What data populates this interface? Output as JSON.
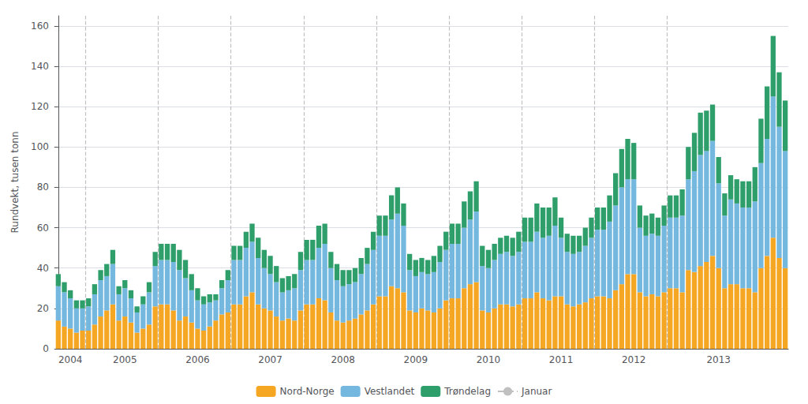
{
  "chart_data": {
    "type": "bar",
    "stacked": true,
    "ylabel": "Rundvekt, tusen tonn",
    "ylim": [
      0,
      165
    ],
    "yticks": [
      0,
      20,
      40,
      60,
      80,
      100,
      120,
      140,
      160
    ],
    "grid": true,
    "legend": "bottom",
    "categories": [
      null,
      null,
      "2004",
      null,
      null,
      null,
      null,
      null,
      null,
      null,
      null,
      "2005",
      null,
      null,
      null,
      null,
      null,
      null,
      null,
      null,
      null,
      null,
      null,
      "2006",
      null,
      null,
      null,
      null,
      null,
      null,
      null,
      null,
      null,
      null,
      null,
      "2007",
      null,
      null,
      null,
      null,
      null,
      null,
      null,
      null,
      null,
      null,
      null,
      "2008",
      null,
      null,
      null,
      null,
      null,
      null,
      null,
      null,
      null,
      null,
      null,
      "2009",
      null,
      null,
      null,
      null,
      null,
      null,
      null,
      null,
      null,
      null,
      null,
      "2010",
      null,
      null,
      null,
      null,
      null,
      null,
      null,
      null,
      null,
      null,
      null,
      "2011",
      null,
      null,
      null,
      null,
      null,
      null,
      null,
      null,
      null,
      null,
      null,
      "2012",
      null,
      null,
      null,
      null,
      null,
      null,
      null,
      null,
      null,
      null,
      null,
      null,
      null,
      "2013",
      null,
      null,
      null,
      null,
      null,
      null,
      null,
      null,
      null,
      null,
      null
    ],
    "series": [
      {
        "name": "Nord-Norge",
        "color": "#F5A623",
        "values": [
          14,
          11,
          10,
          8,
          9,
          9,
          12,
          16,
          19,
          22,
          14,
          16,
          13,
          8,
          10,
          12,
          21,
          22,
          22,
          19,
          14,
          16,
          13,
          10,
          9,
          11,
          14,
          17,
          18,
          22,
          22,
          26,
          28,
          22,
          20,
          19,
          16,
          14,
          15,
          14,
          19,
          22,
          22,
          25,
          24,
          18,
          14,
          13,
          14,
          15,
          17,
          19,
          22,
          26,
          26,
          31,
          30,
          28,
          19,
          18,
          20,
          19,
          18,
          20,
          24,
          25,
          25,
          30,
          32,
          33,
          19,
          18,
          20,
          22,
          22,
          21,
          22,
          25,
          25,
          28,
          25,
          24,
          26,
          26,
          22,
          21,
          22,
          23,
          25,
          26,
          26,
          25,
          29,
          32,
          37,
          37,
          28,
          26,
          27,
          26,
          28,
          30,
          30,
          28,
          39,
          38,
          41,
          43,
          46,
          40,
          30,
          32,
          32,
          30,
          30,
          28,
          40,
          46,
          55,
          45,
          40
        ]
      },
      {
        "name": "Vestlandet",
        "color": "#74B8E0",
        "values": [
          17,
          17,
          15,
          12,
          11,
          12,
          15,
          18,
          17,
          20,
          13,
          14,
          12,
          10,
          12,
          16,
          20,
          22,
          22,
          24,
          25,
          19,
          16,
          14,
          13,
          12,
          10,
          13,
          16,
          22,
          22,
          24,
          25,
          23,
          20,
          18,
          17,
          14,
          14,
          16,
          20,
          22,
          22,
          25,
          28,
          22,
          20,
          18,
          18,
          18,
          20,
          23,
          27,
          30,
          30,
          33,
          37,
          33,
          20,
          18,
          18,
          18,
          20,
          23,
          25,
          27,
          27,
          30,
          32,
          35,
          22,
          22,
          24,
          25,
          26,
          25,
          26,
          28,
          28,
          30,
          30,
          32,
          35,
          29,
          26,
          26,
          26,
          28,
          30,
          33,
          33,
          38,
          42,
          48,
          47,
          47,
          32,
          30,
          30,
          30,
          33,
          35,
          35,
          38,
          45,
          50,
          55,
          55,
          57,
          42,
          36,
          42,
          40,
          40,
          40,
          45,
          52,
          58,
          70,
          65,
          58
        ]
      },
      {
        "name": "Trøndelag",
        "color": "#2E9E6B",
        "values": [
          6,
          5,
          4,
          4,
          4,
          4,
          5,
          5,
          6,
          7,
          4,
          4,
          4,
          3,
          4,
          5,
          7,
          8,
          8,
          9,
          10,
          9,
          8,
          6,
          4,
          4,
          3,
          4,
          5,
          7,
          7,
          8,
          9,
          10,
          9,
          9,
          8,
          7,
          7,
          7,
          9,
          10,
          10,
          11,
          10,
          8,
          8,
          8,
          7,
          7,
          8,
          8,
          9,
          10,
          10,
          12,
          13,
          11,
          8,
          8,
          7,
          7,
          8,
          8,
          9,
          10,
          10,
          13,
          14,
          15,
          10,
          9,
          8,
          8,
          8,
          9,
          10,
          12,
          12,
          14,
          15,
          14,
          14,
          10,
          9,
          9,
          8,
          9,
          10,
          11,
          11,
          13,
          16,
          19,
          20,
          18,
          11,
          10,
          10,
          9,
          10,
          11,
          11,
          13,
          16,
          19,
          21,
          20,
          18,
          13,
          11,
          12,
          12,
          13,
          13,
          17,
          22,
          26,
          30,
          27,
          25
        ]
      },
      {
        "name": "Januar",
        "type": "vline",
        "color": "#C0C0C0",
        "line_style": "dashed",
        "positions": [
          5,
          17,
          29,
          41,
          53,
          65,
          77,
          89,
          101
        ]
      }
    ]
  }
}
